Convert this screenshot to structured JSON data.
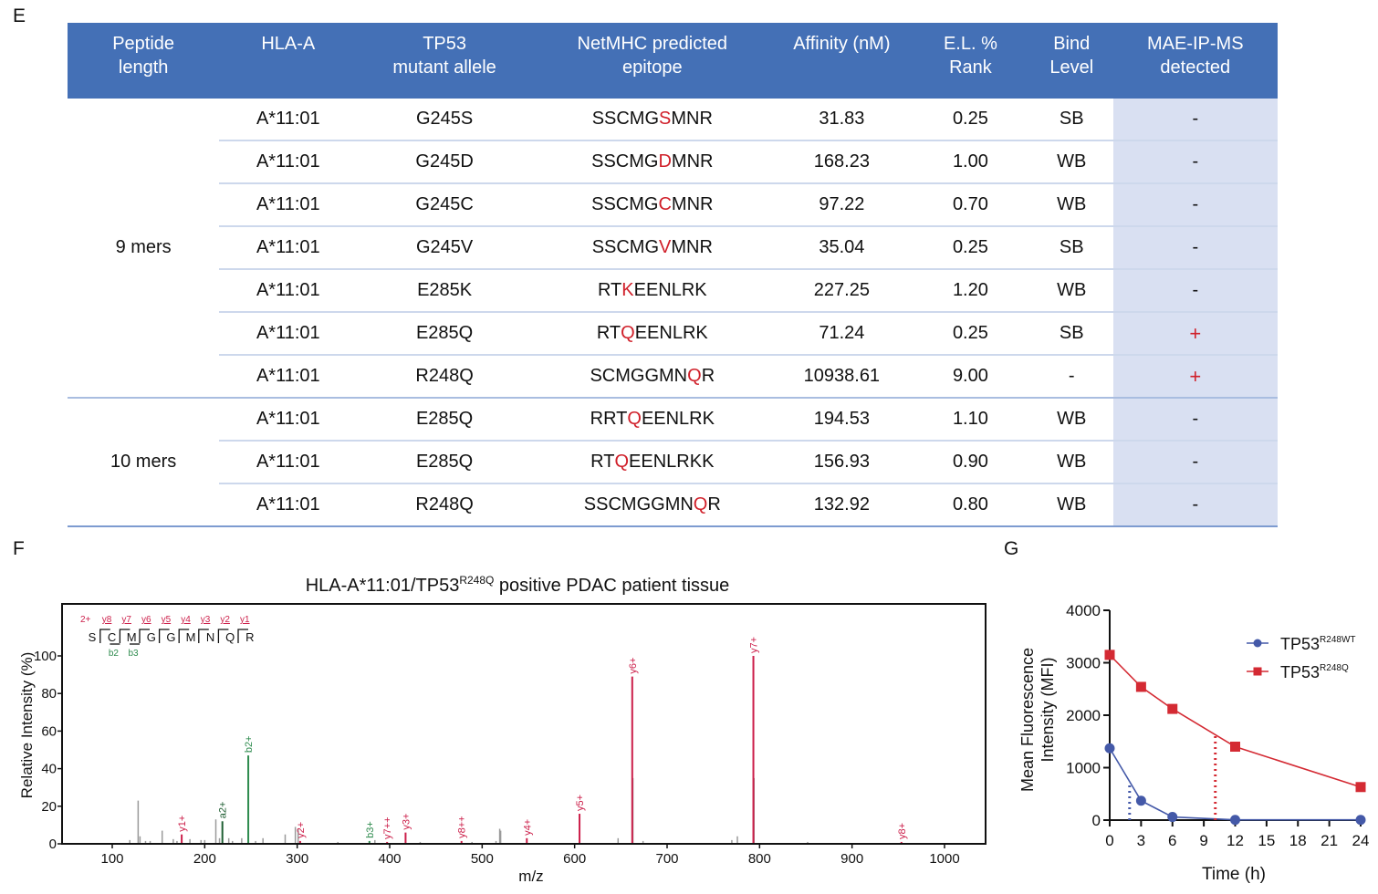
{
  "panels": {
    "e": "E",
    "f": "F",
    "g": "G"
  },
  "table": {
    "headers": [
      [
        "Peptide",
        "length"
      ],
      [
        "HLA-A",
        ""
      ],
      [
        "TP53",
        "mutant allele"
      ],
      [
        "NetMHC predicted",
        "epitope"
      ],
      [
        "Affinity (nM)",
        ""
      ],
      [
        "E.L. %",
        "Rank"
      ],
      [
        "Bind",
        "Level"
      ],
      [
        "MAE-IP-MS",
        "detected"
      ]
    ],
    "groups": [
      {
        "label": "9 mers",
        "rows": [
          {
            "hla": "A*11:01",
            "allele": "G245S",
            "epi_pre": "SSCMG",
            "epi_mut": "S",
            "epi_post": "MNR",
            "affinity": "31.83",
            "rank": "0.25",
            "bind": "SB",
            "detected": "-"
          },
          {
            "hla": "A*11:01",
            "allele": "G245D",
            "epi_pre": "SSCMG",
            "epi_mut": "D",
            "epi_post": "MNR",
            "affinity": "168.23",
            "rank": "1.00",
            "bind": "WB",
            "detected": "-"
          },
          {
            "hla": "A*11:01",
            "allele": "G245C",
            "epi_pre": "SSCMG",
            "epi_mut": "C",
            "epi_post": "MNR",
            "affinity": "97.22",
            "rank": "0.70",
            "bind": "WB",
            "detected": "-"
          },
          {
            "hla": "A*11:01",
            "allele": "G245V",
            "epi_pre": "SSCMG",
            "epi_mut": "V",
            "epi_post": "MNR",
            "affinity": "35.04",
            "rank": "0.25",
            "bind": "SB",
            "detected": "-"
          },
          {
            "hla": "A*11:01",
            "allele": "E285K",
            "epi_pre": "RT",
            "epi_mut": "K",
            "epi_post": "EENLRK",
            "affinity": "227.25",
            "rank": "1.20",
            "bind": "WB",
            "detected": "-"
          },
          {
            "hla": "A*11:01",
            "allele": "E285Q",
            "epi_pre": "RT",
            "epi_mut": "Q",
            "epi_post": "EENLRK",
            "affinity": "71.24",
            "rank": "0.25",
            "bind": "SB",
            "detected": "+"
          },
          {
            "hla": "A*11:01",
            "allele": "R248Q",
            "epi_pre": "SCMGGMN",
            "epi_mut": "Q",
            "epi_post": "R",
            "affinity": "10938.61",
            "rank": "9.00",
            "bind": "-",
            "detected": "+"
          }
        ]
      },
      {
        "label": "10 mers",
        "rows": [
          {
            "hla": "A*11:01",
            "allele": "E285Q",
            "epi_pre": "RRT",
            "epi_mut": "Q",
            "epi_post": "EENLRK",
            "affinity": "194.53",
            "rank": "1.10",
            "bind": "WB",
            "detected": "-"
          },
          {
            "hla": "A*11:01",
            "allele": "E285Q",
            "epi_pre": "RT",
            "epi_mut": "Q",
            "epi_post": "EENLRKK",
            "affinity": "156.93",
            "rank": "0.90",
            "bind": "WB",
            "detected": "-"
          },
          {
            "hla": "A*11:01",
            "allele": "R248Q",
            "epi_pre": "SSCMGGMN",
            "epi_mut": "Q",
            "epi_post": "R",
            "affinity": "132.92",
            "rank": "0.80",
            "bind": "WB",
            "detected": "-"
          }
        ]
      }
    ]
  },
  "colors": {
    "header_bg": "#4470b6",
    "mae_bg": "#d9e0f2",
    "mutation_red": "#d0202a",
    "y_ion": "#cc1f4a",
    "b_ion": "#2e8b4e",
    "a_ion": "#1f5f33",
    "unmatched": "#9a9a9a",
    "wt_series": "#4459a8",
    "q_series": "#d42a33"
  },
  "chart_data": [
    {
      "type": "bar",
      "subtype": "ms2-spectrum",
      "title_pre": "HLA-A*11:01/TP53",
      "title_sup": "R248Q",
      "title_post": " positive PDAC patient tissue",
      "xlabel": "m/z",
      "ylabel": "Relative Intensity (%)",
      "xlim": [
        50,
        1045
      ],
      "ylim": [
        0,
        125
      ],
      "xticks": [
        100,
        200,
        300,
        400,
        500,
        600,
        700,
        800,
        900,
        1000
      ],
      "yticks": [
        0,
        20,
        40,
        60,
        80,
        100
      ],
      "sequence": {
        "charge": "2+",
        "residues": [
          "S",
          "C",
          "M",
          "G",
          "G",
          "M",
          "N",
          "Q",
          "R"
        ],
        "y_labels": [
          "y8",
          "y7",
          "y6",
          "y5",
          "y4",
          "y3",
          "y2",
          "y1"
        ],
        "b_labels": [
          "b2",
          "b3"
        ]
      },
      "annotated_peaks": [
        {
          "label": "y1+",
          "mz": 175.1,
          "intensity": 5,
          "ion": "y"
        },
        {
          "label": "a2+",
          "mz": 219.1,
          "intensity": 12,
          "ion": "a"
        },
        {
          "label": "b2+",
          "mz": 247.1,
          "intensity": 47,
          "ion": "b"
        },
        {
          "label": "y2+",
          "mz": 303.2,
          "intensity": 1.5,
          "ion": "y"
        },
        {
          "label": "b3+",
          "mz": 378.1,
          "intensity": 1.5,
          "ion": "b"
        },
        {
          "label": "y7++",
          "mz": 397.2,
          "intensity": 1,
          "ion": "y"
        },
        {
          "label": "y3+",
          "mz": 417.2,
          "intensity": 6,
          "ion": "y"
        },
        {
          "label": "y8++",
          "mz": 477.7,
          "intensity": 1.5,
          "ion": "y"
        },
        {
          "label": "y4+",
          "mz": 548.3,
          "intensity": 3,
          "ion": "y"
        },
        {
          "label": "y5+",
          "mz": 605.3,
          "intensity": 16,
          "ion": "y"
        },
        {
          "label": "y6+",
          "mz": 662.3,
          "intensity": 89,
          "ion": "y"
        },
        {
          "label": "y7+",
          "mz": 793.3,
          "intensity": 100,
          "ion": "y"
        },
        {
          "label": "y8+",
          "mz": 953.4,
          "intensity": 1,
          "ion": "y"
        }
      ],
      "unmatched_peaks": [
        {
          "mz": 119,
          "intensity": 2
        },
        {
          "mz": 128,
          "intensity": 23
        },
        {
          "mz": 130,
          "intensity": 4
        },
        {
          "mz": 136,
          "intensity": 1.5
        },
        {
          "mz": 141,
          "intensity": 1.5
        },
        {
          "mz": 154,
          "intensity": 7
        },
        {
          "mz": 166,
          "intensity": 2.5
        },
        {
          "mz": 170,
          "intensity": 1.5
        },
        {
          "mz": 184,
          "intensity": 2.5
        },
        {
          "mz": 196,
          "intensity": 2
        },
        {
          "mz": 200,
          "intensity": 2
        },
        {
          "mz": 212,
          "intensity": 13
        },
        {
          "mz": 216,
          "intensity": 3
        },
        {
          "mz": 226,
          "intensity": 3
        },
        {
          "mz": 230,
          "intensity": 1.5
        },
        {
          "mz": 240,
          "intensity": 3
        },
        {
          "mz": 255,
          "intensity": 1.5
        },
        {
          "mz": 263,
          "intensity": 3
        },
        {
          "mz": 287,
          "intensity": 5
        },
        {
          "mz": 298,
          "intensity": 9
        },
        {
          "mz": 301,
          "intensity": 8
        },
        {
          "mz": 344,
          "intensity": 1
        },
        {
          "mz": 384,
          "intensity": 2
        },
        {
          "mz": 433,
          "intensity": 1
        },
        {
          "mz": 489,
          "intensity": 1
        },
        {
          "mz": 515,
          "intensity": 1.5
        },
        {
          "mz": 519,
          "intensity": 8
        },
        {
          "mz": 520,
          "intensity": 7
        },
        {
          "mz": 647,
          "intensity": 3
        },
        {
          "mz": 663,
          "intensity": 35
        },
        {
          "mz": 674,
          "intensity": 1.5
        },
        {
          "mz": 770,
          "intensity": 2
        },
        {
          "mz": 776,
          "intensity": 4
        },
        {
          "mz": 794,
          "intensity": 35
        },
        {
          "mz": 852,
          "intensity": 1
        }
      ]
    },
    {
      "type": "line",
      "title": "",
      "xlabel": "Time (h)",
      "ylabel_line1": "Mean Fluorescence",
      "ylabel_line2": "Intensity (MFI)",
      "xlim": [
        0,
        24
      ],
      "ylim": [
        0,
        4000
      ],
      "xticks": [
        0,
        3,
        6,
        9,
        12,
        15,
        18,
        21,
        24
      ],
      "yticks": [
        0,
        1000,
        2000,
        3000,
        4000
      ],
      "legend_position": "top-right",
      "x": [
        0,
        3,
        6,
        12,
        24
      ],
      "series": [
        {
          "name_base": "TP53",
          "name_sup": "R248WT",
          "marker": "circle",
          "values": [
            1370,
            370,
            60,
            5,
            5
          ],
          "half_life_h": 1.9,
          "half_life_value": 720
        },
        {
          "name_base": "TP53",
          "name_sup": "R248Q",
          "marker": "square",
          "values": [
            3150,
            2540,
            2120,
            1400,
            630
          ],
          "half_life_h": 10.1,
          "half_life_value": 1610
        }
      ]
    }
  ]
}
